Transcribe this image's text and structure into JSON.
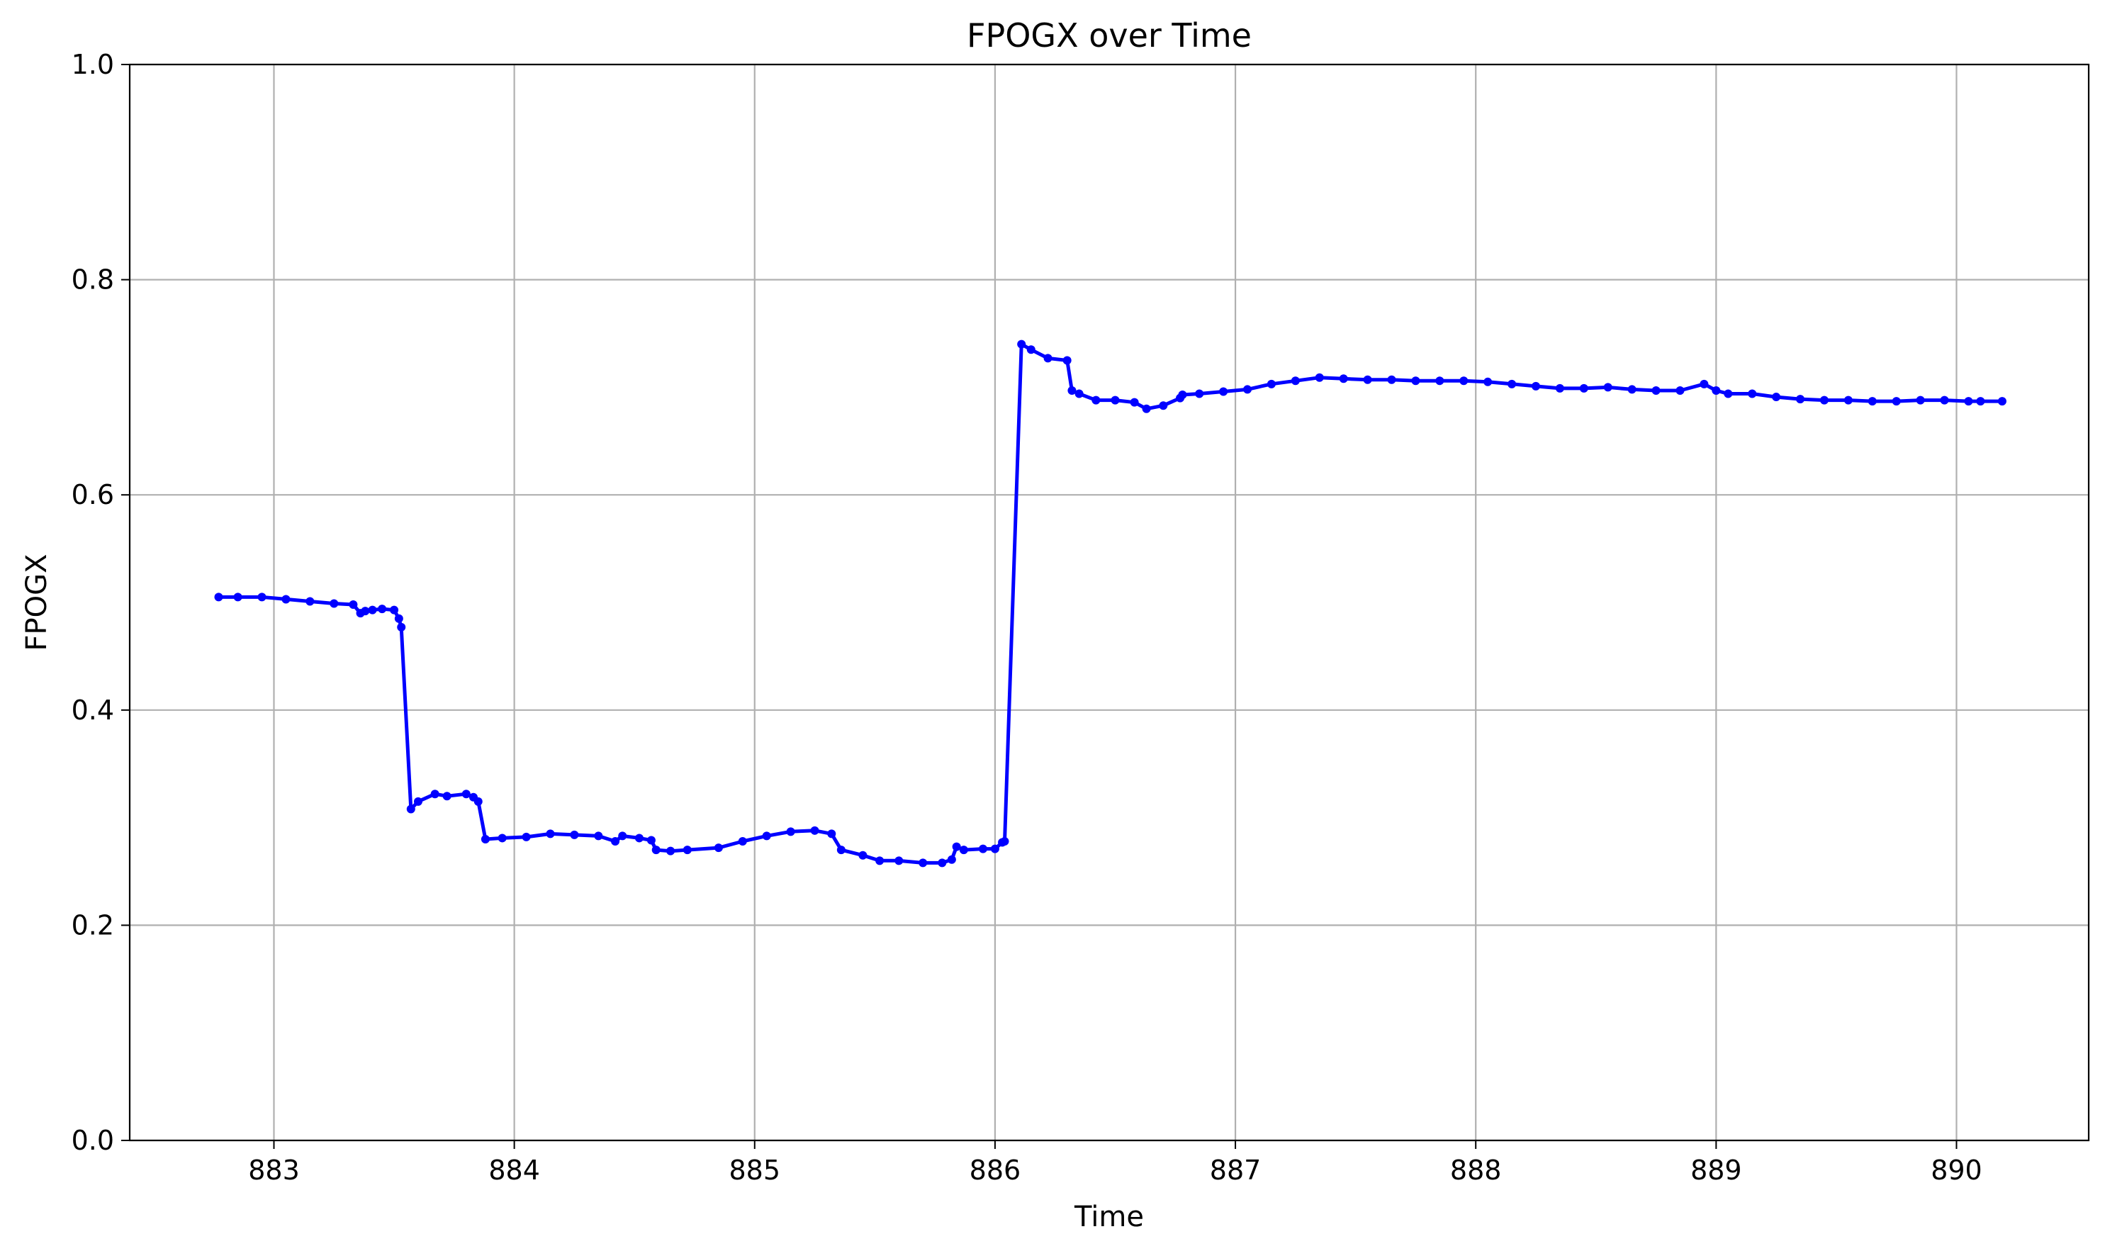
{
  "chart_data": {
    "type": "line",
    "title": "FPOGX over Time",
    "xlabel": "Time",
    "ylabel": "FPOGX",
    "xlim": [
      882.4,
      890.55
    ],
    "ylim": [
      0.0,
      1.0
    ],
    "xticks": [
      883,
      884,
      885,
      886,
      887,
      888,
      889,
      890
    ],
    "yticks": [
      0.0,
      0.2,
      0.4,
      0.6,
      0.8,
      1.0
    ],
    "ytick_labels": [
      "0.0",
      "0.2",
      "0.4",
      "0.6",
      "0.8",
      "1.0"
    ],
    "grid": true,
    "colors": {
      "line": "#0000ff"
    },
    "series": [
      {
        "x": [
          882.77,
          882.85,
          882.95,
          883.05,
          883.15,
          883.25,
          883.33,
          883.36,
          883.38,
          883.41,
          883.45,
          883.5,
          883.52,
          883.53,
          883.57,
          883.6,
          883.67,
          883.72,
          883.8,
          883.83,
          883.85,
          883.88,
          883.95,
          884.05,
          884.15,
          884.25,
          884.35,
          884.42,
          884.45,
          884.52,
          884.57,
          884.59,
          884.65,
          884.72,
          884.85,
          884.95,
          885.05,
          885.15,
          885.25,
          885.32,
          885.36,
          885.45,
          885.52,
          885.6,
          885.7,
          885.78,
          885.82,
          885.84,
          885.87,
          885.95,
          886.0,
          886.03,
          886.04,
          886.11,
          886.15,
          886.22,
          886.3,
          886.32,
          886.35,
          886.42,
          886.5,
          886.58,
          886.63,
          886.7,
          886.77,
          886.78,
          886.85,
          886.95,
          887.05,
          887.15,
          887.25,
          887.35,
          887.45,
          887.55,
          887.65,
          887.75,
          887.85,
          887.95,
          888.05,
          888.15,
          888.25,
          888.35,
          888.45,
          888.55,
          888.65,
          888.75,
          888.85,
          888.95,
          889.0,
          889.05,
          889.15,
          889.25,
          889.35,
          889.45,
          889.55,
          889.65,
          889.75,
          889.85,
          889.95,
          890.05,
          890.1,
          890.19
        ],
        "y": [
          0.505,
          0.505,
          0.505,
          0.503,
          0.501,
          0.499,
          0.498,
          0.49,
          0.492,
          0.493,
          0.494,
          0.493,
          0.485,
          0.477,
          0.308,
          0.315,
          0.322,
          0.32,
          0.322,
          0.319,
          0.315,
          0.28,
          0.281,
          0.282,
          0.285,
          0.284,
          0.283,
          0.278,
          0.283,
          0.281,
          0.279,
          0.27,
          0.269,
          0.27,
          0.272,
          0.278,
          0.283,
          0.287,
          0.288,
          0.285,
          0.27,
          0.265,
          0.26,
          0.26,
          0.258,
          0.258,
          0.261,
          0.273,
          0.27,
          0.271,
          0.271,
          0.277,
          0.278,
          0.74,
          0.735,
          0.727,
          0.725,
          0.697,
          0.694,
          0.688,
          0.688,
          0.686,
          0.68,
          0.683,
          0.69,
          0.693,
          0.694,
          0.696,
          0.698,
          0.703,
          0.706,
          0.709,
          0.708,
          0.707,
          0.707,
          0.706,
          0.706,
          0.706,
          0.705,
          0.703,
          0.701,
          0.699,
          0.699,
          0.7,
          0.698,
          0.697,
          0.697,
          0.703,
          0.697,
          0.694,
          0.694,
          0.691,
          0.689,
          0.688,
          0.688,
          0.687,
          0.687,
          0.688,
          0.688,
          0.687,
          0.687,
          0.687
        ]
      }
    ]
  }
}
